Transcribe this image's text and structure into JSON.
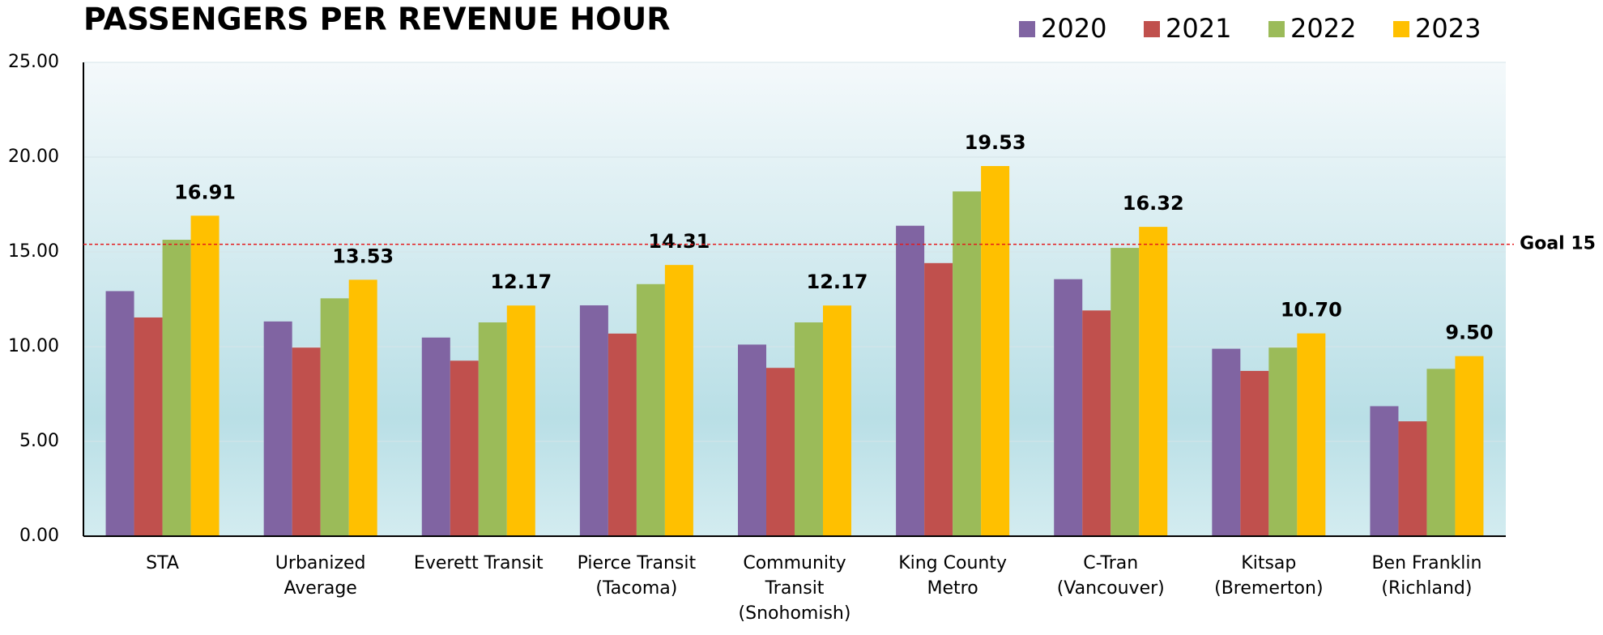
{
  "chart_data": {
    "type": "bar",
    "title": "PASSENGERS PER REVENUE HOUR",
    "categories": [
      "STA",
      "Urbanized\nAverage",
      "Everett Transit",
      "Pierce Transit\n(Tacoma)",
      "Community\nTransit\n(Snohomish)",
      "King County\nMetro",
      "C-Tran\n(Vancouver)",
      "Kitsap\n(Bremerton)",
      "Ben Franklin\n(Richland)"
    ],
    "series": [
      {
        "name": "2020",
        "color": "#8064a2",
        "values": [
          12.93,
          11.33,
          10.48,
          12.18,
          10.11,
          16.38,
          13.56,
          9.89,
          6.86
        ]
      },
      {
        "name": "2021",
        "color": "#c0504d",
        "values": [
          11.54,
          9.95,
          9.26,
          10.69,
          8.88,
          14.41,
          11.91,
          8.72,
          6.06
        ]
      },
      {
        "name": "2022",
        "color": "#9bbb59",
        "values": [
          15.64,
          12.55,
          11.28,
          13.3,
          11.28,
          18.19,
          15.21,
          9.95,
          8.83
        ]
      },
      {
        "name": "2023",
        "color": "#ffc000",
        "values": [
          16.91,
          13.53,
          12.17,
          14.31,
          12.17,
          19.53,
          16.32,
          10.7,
          9.5
        ],
        "value_labels": [
          "16.91",
          "13.53",
          "12.17",
          "14.31",
          "12.17",
          "19.53",
          "16.32",
          "10.70",
          "9.50"
        ]
      }
    ],
    "ylim": [
      0,
      25
    ],
    "yticks": [
      {
        "value": 0,
        "label": "0.00"
      },
      {
        "value": 5,
        "label": "5.00"
      },
      {
        "value": 10,
        "label": "10.00"
      },
      {
        "value": 15,
        "label": "15.00"
      },
      {
        "value": 20,
        "label": "20.00"
      },
      {
        "value": 25,
        "label": "25.00"
      }
    ],
    "grid": true,
    "goal": {
      "value": 15.4,
      "label": "Goal 15",
      "color": "#e31a1c"
    },
    "legend": "top-right"
  }
}
